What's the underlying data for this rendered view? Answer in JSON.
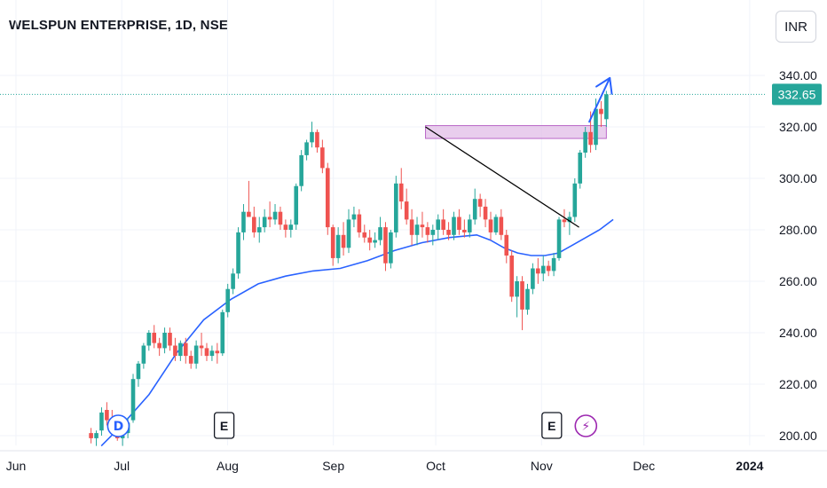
{
  "header": {
    "title": "WELSPUN ENTERPRISE, 1D, NSE",
    "currency_button": "INR"
  },
  "colors": {
    "up": "#26a69a",
    "down": "#ef5350",
    "ma": "#2962ff",
    "trendline": "#000000",
    "zone_fill": "#e1bee7",
    "zone_border": "#ba68c8",
    "arrow": "#2962ff",
    "last_price_bg": "#26a69a",
    "dividend_marker": "#2962ff",
    "split_marker": "#9c27b0"
  },
  "chart_data": {
    "type": "candlestick",
    "title": "WELSPUN ENTERPRISE, 1D, NSE",
    "y_ticks": [
      "200.00",
      "220.00",
      "240.00",
      "260.00",
      "280.00",
      "300.00",
      "320.00",
      "340.00"
    ],
    "ylim": [
      196,
      346
    ],
    "x_ticks": [
      {
        "label": "Jun",
        "day": -4,
        "bold": false
      },
      {
        "label": "Jul",
        "day": 27,
        "bold": false
      },
      {
        "label": "Aug",
        "day": 58,
        "bold": false
      },
      {
        "label": "Sep",
        "day": 89,
        "bold": false
      },
      {
        "label": "Oct",
        "day": 119,
        "bold": false
      },
      {
        "label": "Nov",
        "day": 150,
        "bold": false
      },
      {
        "label": "Dec",
        "day": 180,
        "bold": false
      },
      {
        "label": "2024",
        "day": 211,
        "bold": true
      }
    ],
    "last_price": "332.65",
    "candles": [
      [
        201,
        203,
        197,
        199
      ],
      [
        199,
        202,
        196,
        201
      ],
      [
        202,
        211,
        200,
        209
      ],
      [
        210,
        213,
        204,
        206
      ],
      [
        206,
        210,
        203,
        205
      ],
      [
        205,
        206,
        198,
        199
      ],
      [
        199,
        202,
        196,
        200
      ],
      [
        201,
        207,
        199,
        205
      ],
      [
        206,
        224,
        205,
        222
      ],
      [
        222,
        229,
        219,
        228
      ],
      [
        228,
        236,
        226,
        235
      ],
      [
        235,
        241,
        233,
        240
      ],
      [
        240,
        243,
        234,
        236
      ],
      [
        236,
        238,
        231,
        234
      ],
      [
        234,
        242,
        232,
        240
      ],
      [
        240,
        242,
        233,
        235
      ],
      [
        235,
        238,
        229,
        231
      ],
      [
        231,
        237,
        229,
        236
      ],
      [
        236,
        238,
        228,
        231
      ],
      [
        231,
        233,
        226,
        228
      ],
      [
        228,
        237,
        226,
        235
      ],
      [
        235,
        240,
        231,
        234
      ],
      [
        234,
        236,
        229,
        231
      ],
      [
        231,
        235,
        229,
        233
      ],
      [
        233,
        236,
        228,
        232
      ],
      [
        232,
        249,
        231,
        248
      ],
      [
        248,
        259,
        246,
        257
      ],
      [
        257,
        265,
        255,
        263
      ],
      [
        263,
        281,
        261,
        279
      ],
      [
        279,
        290,
        276,
        287
      ],
      [
        287,
        299,
        285,
        285
      ],
      [
        285,
        289,
        277,
        279
      ],
      [
        279,
        285,
        275,
        281
      ],
      [
        281,
        288,
        279,
        285
      ],
      [
        285,
        291,
        281,
        284
      ],
      [
        284,
        290,
        282,
        287
      ],
      [
        287,
        289,
        280,
        282
      ],
      [
        282,
        284,
        277,
        280
      ],
      [
        280,
        284,
        277,
        282
      ],
      [
        282,
        298,
        280,
        297
      ],
      [
        297,
        311,
        295,
        309
      ],
      [
        309,
        315,
        307,
        314
      ],
      [
        314,
        322,
        312,
        318
      ],
      [
        318,
        319,
        310,
        312
      ],
      [
        312,
        315,
        302,
        304
      ],
      [
        304,
        306,
        278,
        281
      ],
      [
        281,
        282,
        266,
        269
      ],
      [
        269,
        281,
        267,
        278
      ],
      [
        278,
        283,
        270,
        273
      ],
      [
        273,
        288,
        271,
        284
      ],
      [
        284,
        289,
        281,
        286
      ],
      [
        286,
        288,
        277,
        279
      ],
      [
        279,
        282,
        275,
        277
      ],
      [
        277,
        280,
        272,
        275
      ],
      [
        275,
        279,
        273,
        276
      ],
      [
        276,
        285,
        274,
        281
      ],
      [
        281,
        283,
        264,
        267
      ],
      [
        267,
        280,
        265,
        279
      ],
      [
        279,
        301,
        277,
        298
      ],
      [
        298,
        304,
        288,
        291
      ],
      [
        291,
        296,
        282,
        284
      ],
      [
        284,
        288,
        274,
        278
      ],
      [
        278,
        285,
        274,
        282
      ],
      [
        282,
        287,
        277,
        281
      ],
      [
        281,
        283,
        275,
        278
      ],
      [
        278,
        282,
        274,
        280
      ],
      [
        280,
        286,
        276,
        284
      ],
      [
        284,
        288,
        278,
        280
      ],
      [
        280,
        283,
        276,
        278
      ],
      [
        278,
        287,
        276,
        285
      ],
      [
        285,
        288,
        278,
        280
      ],
      [
        280,
        284,
        277,
        279
      ],
      [
        279,
        286,
        277,
        284
      ],
      [
        284,
        296,
        282,
        292
      ],
      [
        292,
        294,
        285,
        289
      ],
      [
        289,
        292,
        281,
        284
      ],
      [
        284,
        287,
        276,
        279
      ],
      [
        279,
        286,
        278,
        285
      ],
      [
        285,
        288,
        276,
        278
      ],
      [
        278,
        280,
        267,
        270
      ],
      [
        270,
        272,
        252,
        254
      ],
      [
        254,
        262,
        246,
        260
      ],
      [
        260,
        262,
        241,
        249
      ],
      [
        249,
        259,
        247,
        257
      ],
      [
        257,
        267,
        255,
        265
      ],
      [
        265,
        269,
        259,
        263
      ],
      [
        263,
        270,
        260,
        266
      ],
      [
        266,
        268,
        262,
        264
      ],
      [
        264,
        271,
        262,
        269
      ],
      [
        269,
        285,
        268,
        284
      ],
      [
        284,
        288,
        281,
        283
      ],
      [
        283,
        287,
        278,
        285
      ],
      [
        285,
        300,
        283,
        298
      ],
      [
        298,
        311,
        296,
        310
      ],
      [
        310,
        320,
        308,
        318
      ],
      [
        318,
        326,
        310,
        313
      ],
      [
        313,
        331,
        311,
        327
      ],
      [
        327,
        330,
        320,
        325
      ],
      [
        323,
        334,
        320,
        332.65
      ]
    ],
    "ma_line": [
      [
        21,
        196
      ],
      [
        27,
        204
      ],
      [
        35,
        216
      ],
      [
        43,
        232
      ],
      [
        51,
        245
      ],
      [
        59,
        253
      ],
      [
        67,
        259
      ],
      [
        75,
        262
      ],
      [
        83,
        264
      ],
      [
        91,
        265
      ],
      [
        99,
        268
      ],
      [
        107,
        272
      ],
      [
        115,
        275
      ],
      [
        123,
        277
      ],
      [
        131,
        278
      ],
      [
        135,
        276
      ],
      [
        139,
        273
      ],
      [
        143,
        271
      ],
      [
        147,
        270
      ],
      [
        151,
        270
      ],
      [
        155,
        271
      ],
      [
        159,
        274
      ],
      [
        163,
        277
      ],
      [
        167,
        280
      ],
      [
        171,
        284
      ]
    ],
    "trendline": [
      [
        116,
        320
      ],
      [
        161,
        281
      ]
    ],
    "resistance_zone": {
      "day_start": 116,
      "day_end": 169,
      "low": 315.5,
      "high": 320.5
    },
    "arrow": {
      "from": [
        164,
        322
      ],
      "to": [
        170,
        339
      ]
    },
    "markers": [
      {
        "type": "dividend",
        "letter": "D",
        "day": 26
      },
      {
        "type": "earnings",
        "letter": "E",
        "day": 57
      },
      {
        "type": "earnings",
        "letter": "E",
        "day": 153
      },
      {
        "type": "split",
        "letter": "⚡",
        "day": 163
      }
    ]
  }
}
